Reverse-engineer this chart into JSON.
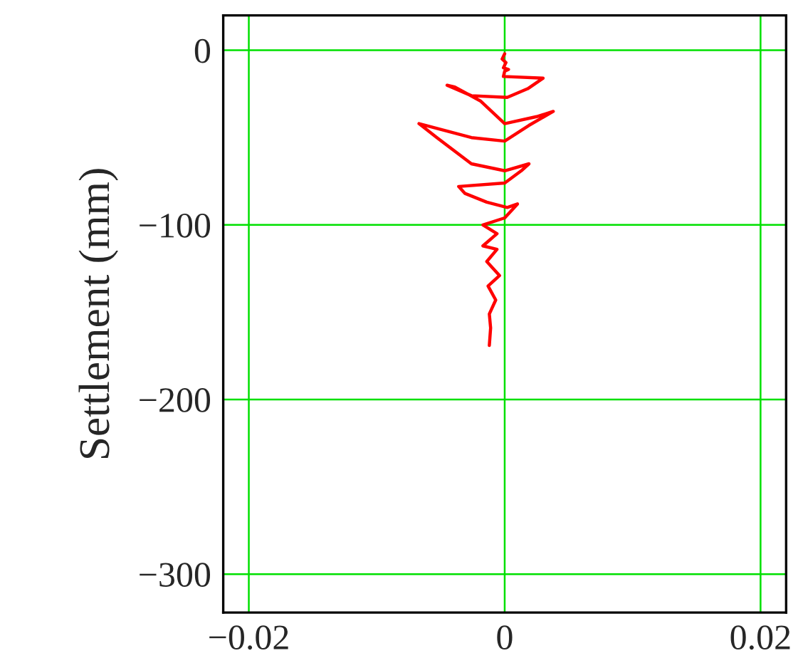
{
  "chart_data": {
    "type": "line",
    "ylabel": "Settlement (mm)",
    "series": [
      {
        "color": "#ff0000",
        "x": [
          0,
          -0.0002,
          0.0001,
          -0.0001,
          0.0003,
          0,
          -0.0001,
          0.003,
          0.0018,
          0.0002,
          -0.0026,
          -0.0045,
          -0.0039,
          -0.0019,
          0,
          0.0025,
          0.0038,
          0.0019,
          0,
          -0.0026,
          -0.0067,
          -0.0053,
          -0.0026,
          0,
          0.0019,
          0.0013,
          0,
          -0.0036,
          -0.0031,
          -0.0014,
          0.0002,
          0.001,
          0,
          -0.0017,
          -0.0006,
          -0.0017,
          -0.0006,
          -0.0014,
          -0.0004,
          -0.0013,
          -0.0007,
          -0.0012,
          -0.0011,
          -0.0012
        ],
        "values": [
          -2,
          -5,
          -7,
          -10,
          -11,
          -12,
          -15,
          -16,
          -22,
          -27,
          -26,
          -20,
          -21,
          -29,
          -42,
          -38,
          -35,
          -43,
          -52,
          -50,
          -42,
          -50,
          -65,
          -69,
          -65,
          -69,
          -76,
          -78,
          -82,
          -87,
          -90,
          -88,
          -96,
          -100,
          -105,
          -112,
          -114,
          -121,
          -129,
          -135,
          -143,
          -151,
          -159,
          -169
        ]
      }
    ],
    "xlim": [
      -0.022,
      0.022
    ],
    "ylim": [
      -322,
      20
    ],
    "xticks": [
      {
        "value": -0.02,
        "label": "−0.02"
      },
      0,
      0.02
    ],
    "yticks": [
      0,
      {
        "value": -100,
        "label": "−100"
      },
      {
        "value": -200,
        "label": "−200"
      },
      {
        "value": -300,
        "label": "−300"
      }
    ],
    "grid": true,
    "marker": "none",
    "line_style": "solid"
  }
}
